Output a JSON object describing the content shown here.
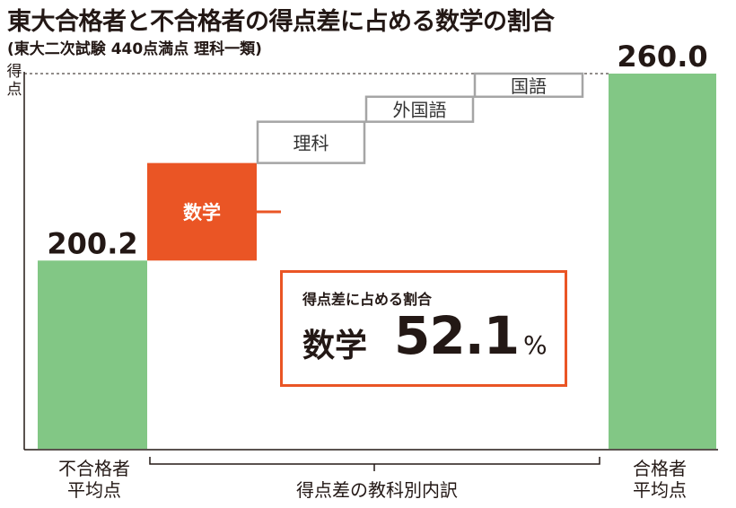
{
  "title": "東大合格者と不合格者の得点差に占める数学の割合",
  "subtitle": "(東大二次試験 440点満点 理科一類)",
  "chart_data": {
    "type": "bar",
    "ylabel": "得点",
    "baseline_bars": [
      {
        "name": "不合格者平均点",
        "label_lines": [
          "不合格者",
          "平均点"
        ],
        "value": 200.2,
        "value_label": "200.2",
        "color": "#82c785"
      },
      {
        "name": "合格者平均点",
        "label_lines": [
          "合格者",
          "平均点"
        ],
        "value": 260.0,
        "value_label": "260.0",
        "color": "#82c785"
      }
    ],
    "breakdown": {
      "label": "得点差の教科別内訳",
      "items": [
        {
          "name": "数学",
          "value": 31.2,
          "fill": "#ea5525",
          "text_color": "#ffffff"
        },
        {
          "name": "理科",
          "value": 13.2,
          "fill": "#ffffff",
          "text_color": "#333333"
        },
        {
          "name": "外国語",
          "value": 8.0,
          "fill": "#ffffff",
          "text_color": "#333333"
        },
        {
          "name": "国語",
          "value": 7.4,
          "fill": "#ffffff",
          "text_color": "#333333"
        }
      ]
    },
    "callout": {
      "title": "得点差に占める割合",
      "subject": "数学",
      "value": "52.1",
      "unit": "%"
    },
    "ylim": [
      140,
      260
    ],
    "grid": false,
    "colors": {
      "accent": "#ea5525",
      "bar": "#82c785",
      "box_border": "#a5a5a5",
      "text": "#231815"
    }
  }
}
